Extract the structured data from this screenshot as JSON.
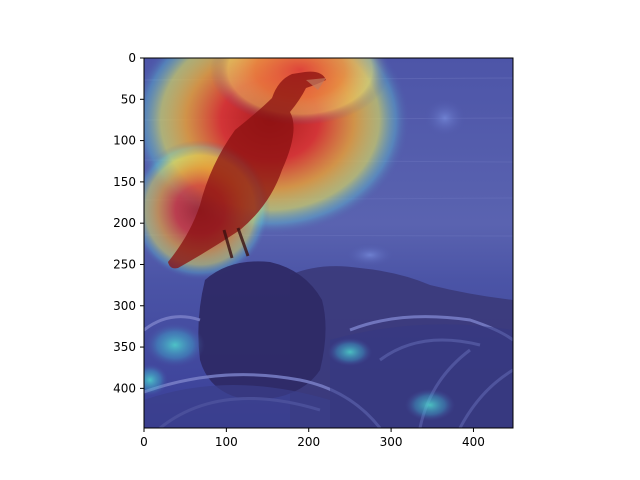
{
  "figure": {
    "image_description_name": "heatmap-overlay-crow-image",
    "x_ticks": [
      "0",
      "100",
      "200",
      "300",
      "400"
    ],
    "y_ticks": [
      "0",
      "50",
      "100",
      "150",
      "200",
      "250",
      "300",
      "350",
      "400"
    ],
    "x_tick_values": [
      0,
      100,
      200,
      300,
      400
    ],
    "y_tick_values": [
      0,
      50,
      100,
      150,
      200,
      250,
      300,
      350,
      400
    ],
    "x_range": [
      0,
      448
    ],
    "y_range": [
      0,
      448
    ]
  }
}
